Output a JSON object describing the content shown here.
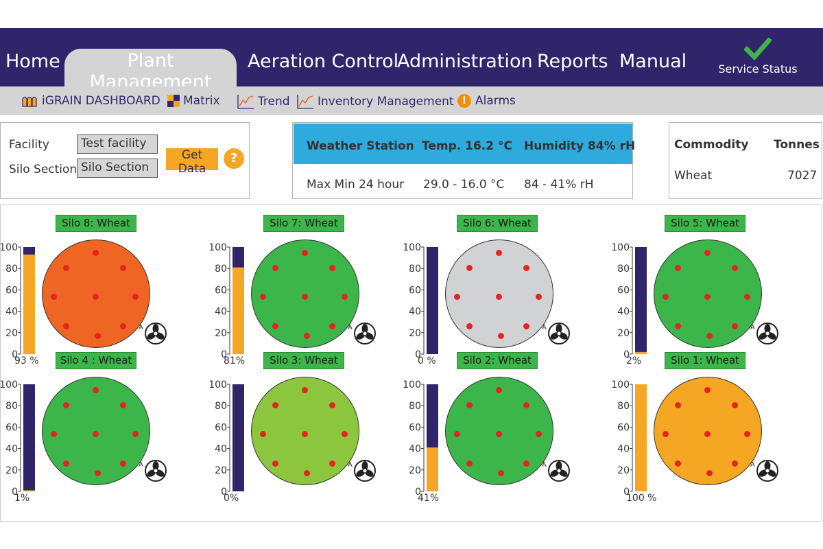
{
  "nav": {
    "items": [
      "Home",
      "Plant Management",
      "Aeration Control",
      "Administration",
      "Reports",
      "Manual"
    ],
    "active": "Plant Management",
    "service_status": "Service Status"
  },
  "subnav": {
    "dashboard": "iGRAIN DASHBOARD",
    "matrix": "Matrix",
    "trend": "Trend",
    "inventory": "Inventory Management",
    "alarms": "Alarms",
    "alarm_icon": "!"
  },
  "filters": {
    "facility_label": "Facility",
    "facility_value": "Test facility",
    "section_label": "Silo Section",
    "section_value": "Silo Section",
    "get_data": "Get Data",
    "help": "?"
  },
  "weather": {
    "station": "Weather Station",
    "temp": "Temp. 16.2 °C",
    "humidity": "Humidity 84% rH",
    "period": "Max Min 24 hour",
    "temp_range": "29.0 - 16.0 °C",
    "humidity_range": "84 - 41% rH"
  },
  "commodity": {
    "header_commodity": "Commodity",
    "header_tonnes": "Tonnes",
    "name": "Wheat",
    "tonnes": "7027"
  },
  "gauge_ticks": [
    "100",
    "80",
    "60",
    "40",
    "20",
    "0"
  ],
  "fan_mode": "A",
  "colors": {
    "nav_bg": "#30246a",
    "fill_orange": "#f5a623",
    "empty_navy": "#30246a",
    "label_green": "#3cb64a",
    "sensor_red": "#e52420"
  },
  "silos": [
    {
      "label": "Silo 8: Wheat",
      "fill_pct": 93,
      "pct_label": "93 %",
      "color": "#ef6524"
    },
    {
      "label": "Silo 7: Wheat",
      "fill_pct": 81,
      "pct_label": "81%",
      "color": "#3cb64a"
    },
    {
      "label": "Silo 6: Wheat",
      "fill_pct": 0,
      "pct_label": "0 %",
      "color": "#d1d2d4"
    },
    {
      "label": "Silo 5: Wheat",
      "fill_pct": 2,
      "pct_label": "2%",
      "color": "#3cb64a"
    },
    {
      "label": "Silo 4 : Wheat",
      "fill_pct": 1,
      "pct_label": "1%",
      "color": "#3cb64a"
    },
    {
      "label": "Silo 3: Wheat",
      "fill_pct": 0,
      "pct_label": "0%",
      "color": "#8cc63f"
    },
    {
      "label": "Silo 2: Wheat",
      "fill_pct": 41,
      "pct_label": "41%",
      "color": "#3cb64a"
    },
    {
      "label": "Silo 1: Wheat",
      "fill_pct": 100,
      "pct_label": "100 %",
      "color": "#f5a623"
    }
  ]
}
